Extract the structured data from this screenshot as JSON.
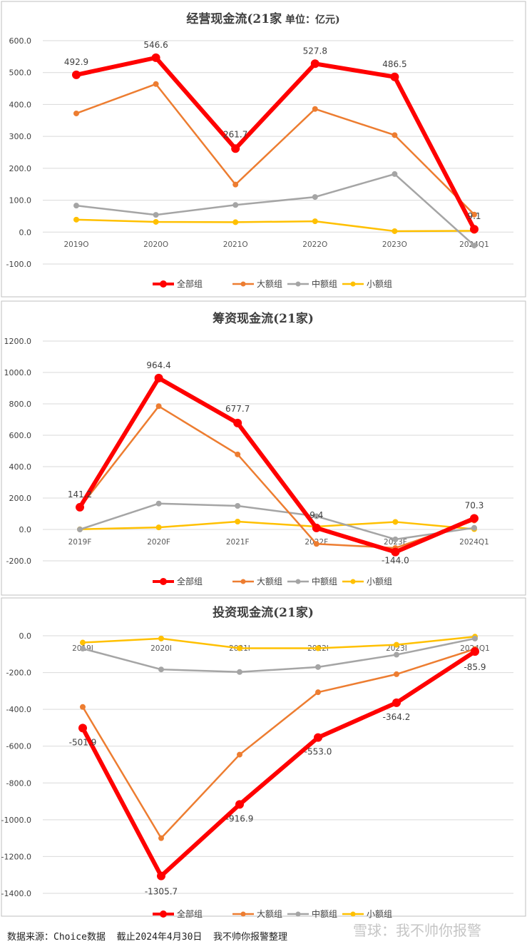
{
  "colors": {
    "all": "#FF0000",
    "large": "#ED7D31",
    "medium": "#A5A5A5",
    "small": "#FFC000",
    "grid": "#D9D9D9",
    "text": "#404040",
    "border": "#BFBFBF"
  },
  "chart_data": [
    {
      "type": "line",
      "title": "经营现金流(21家",
      "title_suffix": " 单位：亿元)",
      "categories": [
        "2019O",
        "2020O",
        "2021O",
        "2022O",
        "2023O",
        "2024Q1"
      ],
      "ylim": [
        -100,
        600
      ],
      "yticks": [
        "600.0",
        "500.0",
        "400.0",
        "300.0",
        "200.0",
        "100.0",
        "0.0",
        "-100.0"
      ],
      "legend_position": "bottom",
      "series": [
        {
          "name": "全部组",
          "key": "all",
          "values": [
            492.9,
            546.6,
            261.7,
            527.8,
            486.5,
            9.1
          ],
          "labels": [
            "492.9",
            "546.6",
            "261.7",
            "527.8",
            "486.5",
            "9.1"
          ]
        },
        {
          "name": "大额组",
          "key": "large",
          "values": [
            372,
            464,
            149,
            386,
            304,
            55
          ]
        },
        {
          "name": "中额组",
          "key": "medium",
          "values": [
            83,
            54,
            85,
            110,
            182,
            -42
          ]
        },
        {
          "name": "小额组",
          "key": "small",
          "values": [
            39,
            32,
            31,
            34,
            3,
            4
          ]
        }
      ]
    },
    {
      "type": "line",
      "title": "筹资现金流(21家)",
      "title_suffix": "",
      "categories": [
        "2019F",
        "2020F",
        "2021F",
        "2022F",
        "2023F",
        "2024Q1"
      ],
      "ylim": [
        -200,
        1200
      ],
      "yticks": [
        "1200.0",
        "1000.0",
        "800.0",
        "600.0",
        "400.0",
        "200.0",
        "0.0",
        "-200.0"
      ],
      "legend_position": "bottom",
      "series": [
        {
          "name": "全部组",
          "key": "all",
          "values": [
            141.2,
            964.4,
            677.7,
            9.4,
            -144.0,
            70.3
          ],
          "labels": [
            "141.2",
            "964.4",
            "677.7",
            "9.4",
            "-144.0",
            "70.3"
          ]
        },
        {
          "name": "大额组",
          "key": "large",
          "values": [
            140,
            785,
            478,
            -92,
            -118,
            57
          ]
        },
        {
          "name": "中额组",
          "key": "medium",
          "values": [
            0,
            165,
            150,
            84,
            -63,
            10
          ]
        },
        {
          "name": "小额组",
          "key": "small",
          "values": [
            1,
            13,
            50,
            18,
            48,
            2
          ]
        }
      ]
    },
    {
      "type": "line",
      "title": "投资现金流(21家)",
      "title_suffix": "",
      "categories": [
        "2019I",
        "2020I",
        "2021I",
        "2022I",
        "2023I",
        "2024Q1"
      ],
      "ylim": [
        -1400,
        0
      ],
      "yticks": [
        "0.0",
        "-200.0",
        "-400.0",
        "-600.0",
        "-800.0",
        "-1000.0",
        "-1200.0",
        "-1400.0"
      ],
      "legend_position": "bottom",
      "series": [
        {
          "name": "全部组",
          "key": "all",
          "values": [
            -501.9,
            -1305.7,
            -916.9,
            -553.0,
            -364.2,
            -85.9
          ],
          "labels": [
            "-501.9",
            "-1305.7",
            "-916.9",
            "-553.0",
            "-364.2",
            "-85.9"
          ]
        },
        {
          "name": "大额组",
          "key": "large",
          "values": [
            -387,
            -1100,
            -646,
            -307,
            -209,
            -72
          ]
        },
        {
          "name": "中额组",
          "key": "medium",
          "values": [
            -70,
            -183,
            -197,
            -170,
            -103,
            -15
          ]
        },
        {
          "name": "小额组",
          "key": "small",
          "values": [
            -37,
            -15,
            -68,
            -68,
            -49,
            -5
          ]
        }
      ]
    }
  ],
  "footer": {
    "source": "数据来源：Choice数据  截止2024年4月30日  我不帅你报警整理",
    "watermark": "雪球：我不帅你报警"
  }
}
